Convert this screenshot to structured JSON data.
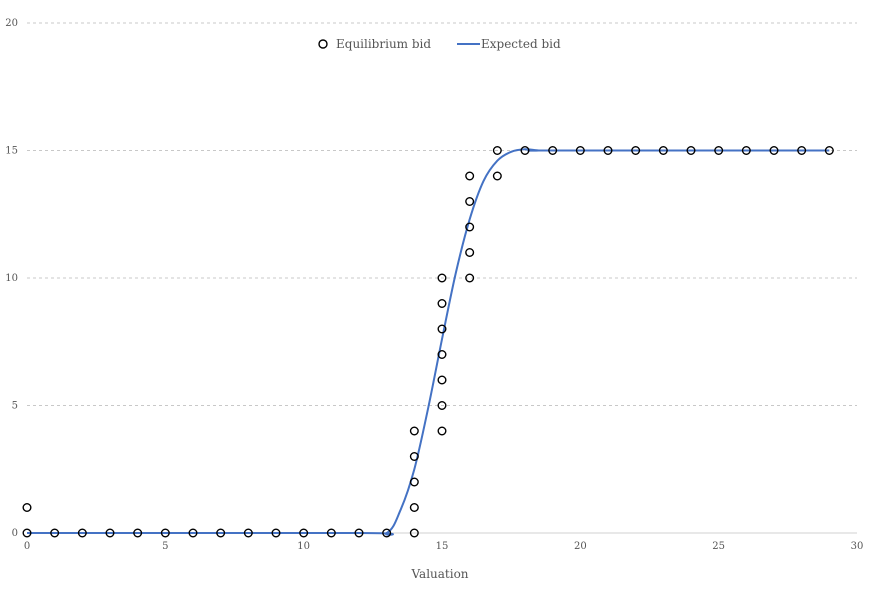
{
  "chart_data": {
    "type": "scatter",
    "title": "",
    "xlabel": "Valuation",
    "ylabel": "",
    "xlim": [
      0,
      30
    ],
    "ylim": [
      0,
      20
    ],
    "xticks": [
      0,
      5,
      10,
      15,
      20,
      25,
      30
    ],
    "yticks": [
      0,
      5,
      10,
      15,
      20
    ],
    "grid": "horizontal-dashed",
    "legend": {
      "placement": "top-center"
    },
    "series": [
      {
        "name": "Equilibrium bid",
        "kind": "scatter",
        "marker": "open-circle",
        "color": "#000000",
        "points": [
          [
            0,
            0
          ],
          [
            0,
            1
          ],
          [
            1,
            0
          ],
          [
            2,
            0
          ],
          [
            3,
            0
          ],
          [
            4,
            0
          ],
          [
            5,
            0
          ],
          [
            6,
            0
          ],
          [
            7,
            0
          ],
          [
            8,
            0
          ],
          [
            9,
            0
          ],
          [
            10,
            0
          ],
          [
            11,
            0
          ],
          [
            12,
            0
          ],
          [
            13,
            0
          ],
          [
            14,
            0
          ],
          [
            14,
            1
          ],
          [
            14,
            2
          ],
          [
            14,
            3
          ],
          [
            14,
            4
          ],
          [
            15,
            4
          ],
          [
            15,
            5
          ],
          [
            15,
            6
          ],
          [
            15,
            7
          ],
          [
            15,
            8
          ],
          [
            15,
            9
          ],
          [
            15,
            10
          ],
          [
            16,
            10
          ],
          [
            16,
            11
          ],
          [
            16,
            12
          ],
          [
            16,
            13
          ],
          [
            16,
            14
          ],
          [
            17,
            14
          ],
          [
            17,
            15
          ],
          [
            18,
            15
          ],
          [
            19,
            15
          ],
          [
            20,
            15
          ],
          [
            21,
            15
          ],
          [
            22,
            15
          ],
          [
            23,
            15
          ],
          [
            24,
            15
          ],
          [
            25,
            15
          ],
          [
            26,
            15
          ],
          [
            27,
            15
          ],
          [
            28,
            15
          ],
          [
            29,
            15
          ]
        ]
      },
      {
        "name": "Expected bid",
        "kind": "line",
        "color": "#4472c4",
        "points": [
          [
            0,
            0
          ],
          [
            12,
            0
          ],
          [
            13,
            0
          ],
          [
            13.5,
            0.9
          ],
          [
            14,
            2.5
          ],
          [
            14.5,
            4.9
          ],
          [
            15,
            7.6
          ],
          [
            15.5,
            10.2
          ],
          [
            16,
            12.3
          ],
          [
            16.5,
            13.8
          ],
          [
            17,
            14.6
          ],
          [
            17.5,
            14.95
          ],
          [
            18,
            15.05
          ],
          [
            18.5,
            15.0
          ],
          [
            19,
            15
          ],
          [
            29,
            15
          ]
        ]
      }
    ]
  }
}
